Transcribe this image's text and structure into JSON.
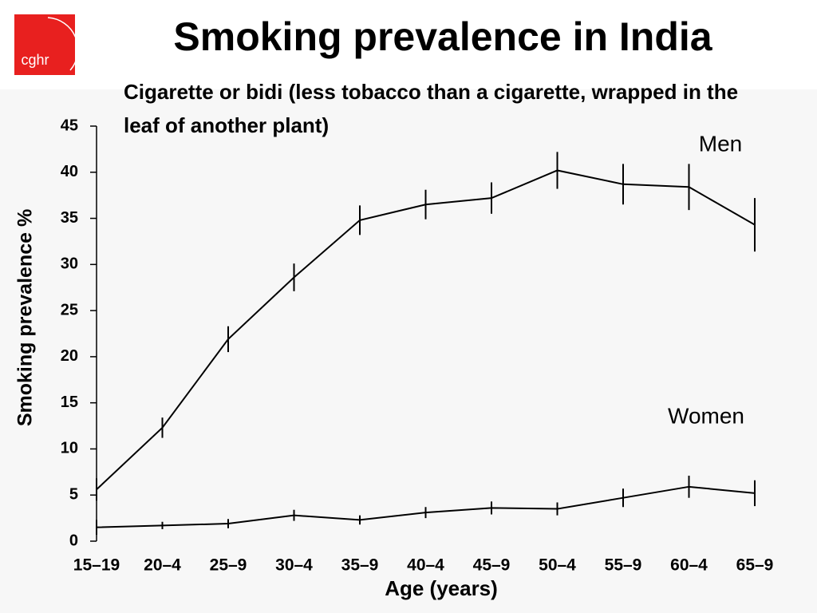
{
  "logo": "cghr",
  "chart_data": {
    "type": "line",
    "title": "Smoking prevalence in India",
    "subtitle": "Cigarette or bidi (less tobacco than a cigarette, wrapped in the leaf of another plant)",
    "x_label": "Age (years)",
    "y_label": "Smoking prevalence %",
    "categories": [
      "15–19",
      "20–4",
      "25–9",
      "30–4",
      "35–9",
      "40–4",
      "45–9",
      "50–4",
      "55–9",
      "60–4",
      "65–9"
    ],
    "series": [
      {
        "name": "Men",
        "color": "#000000",
        "values": [
          5.6,
          12.3,
          21.9,
          28.6,
          34.8,
          36.5,
          37.2,
          40.2,
          38.7,
          38.4,
          34.3
        ],
        "errors": [
          1.2,
          1.1,
          1.4,
          1.5,
          1.6,
          1.6,
          1.7,
          2.0,
          2.2,
          2.5,
          2.9
        ]
      },
      {
        "name": "Women",
        "color": "#000000",
        "values": [
          1.5,
          1.7,
          1.9,
          2.8,
          2.3,
          3.1,
          3.6,
          3.5,
          4.7,
          5.9,
          5.2
        ],
        "errors": [
          0.8,
          0.4,
          0.5,
          0.6,
          0.5,
          0.6,
          0.7,
          0.7,
          1.0,
          1.2,
          1.4
        ]
      }
    ],
    "ylim": [
      0,
      45
    ],
    "yticks": [
      0,
      5,
      10,
      15,
      20,
      25,
      30,
      35,
      40,
      45
    ],
    "grid": false
  }
}
